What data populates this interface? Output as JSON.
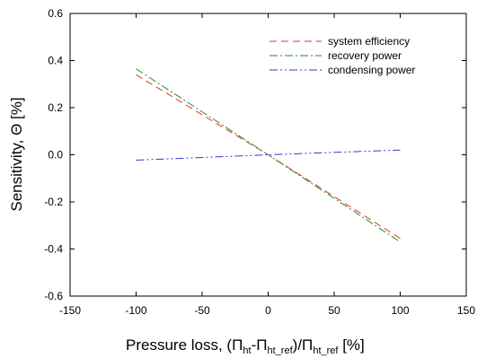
{
  "chart_data": {
    "type": "line",
    "xlabel": "Pressure loss, (Π",
    "xlabel_parts": {
      "pre": "Pressure loss, (",
      "pi1": "Π",
      "sub1": "ht",
      "dash": "-",
      "pi2": "Π",
      "sub2": "ht_ref",
      "close": ")/",
      "pi3": "Π",
      "sub3": "ht_ref",
      "unit": " [%]"
    },
    "ylabel": "Sensitivity, Θ [%]",
    "xlim": [
      -150,
      150
    ],
    "ylim": [
      -0.6,
      0.6
    ],
    "xticks": [
      -150,
      -100,
      -50,
      0,
      50,
      100,
      150
    ],
    "yticks": [
      -0.6,
      -0.4,
      -0.2,
      0.0,
      0.2,
      0.4,
      0.6
    ],
    "xtick_labels": [
      "-150",
      "-100",
      "-50",
      "0",
      "50",
      "100",
      "150"
    ],
    "ytick_labels": [
      "-0.6",
      "-0.4",
      "-0.2",
      "0.0",
      "0.2",
      "0.4",
      "0.6"
    ],
    "grid": false,
    "legend_position": "top-right",
    "series": [
      {
        "name": "system efficiency",
        "color": "#e8332a",
        "dash": "dashed",
        "x": [
          -100,
          0,
          100
        ],
        "y": [
          0.34,
          0.0,
          -0.355
        ]
      },
      {
        "name": "recovery power",
        "color": "#2e8b2e",
        "dash": "dashdot",
        "x": [
          -100,
          0,
          100
        ],
        "y": [
          0.365,
          0.0,
          -0.37
        ]
      },
      {
        "name": "condensing power",
        "color": "#2f3bd6",
        "dash": "dashdotdot",
        "x": [
          -100,
          0,
          100
        ],
        "y": [
          -0.023,
          0.0,
          0.02
        ]
      }
    ]
  }
}
